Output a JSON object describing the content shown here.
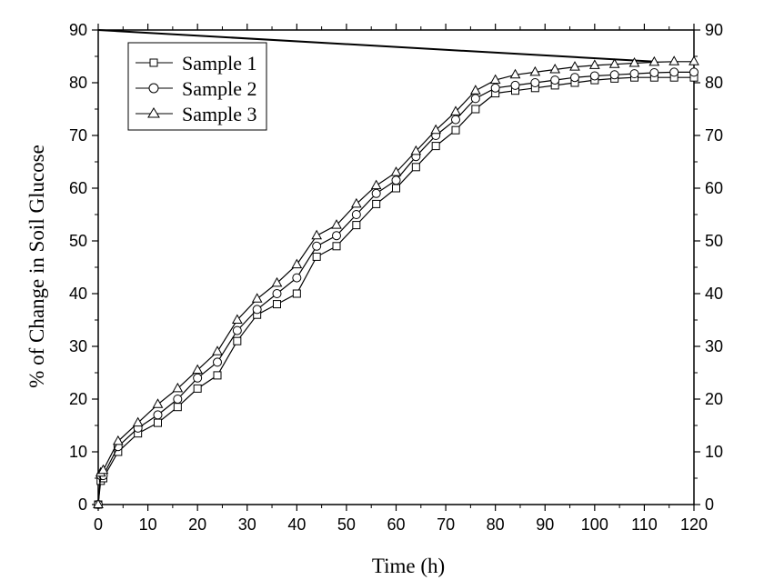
{
  "chart_data": {
    "type": "line",
    "title": "",
    "xlabel": "Time (h)",
    "ylabel": "% of Change in Soil Glucose",
    "xlim": [
      0,
      120
    ],
    "ylim": [
      0,
      90
    ],
    "x_ticks": [
      0,
      10,
      20,
      30,
      40,
      50,
      60,
      70,
      80,
      90,
      100,
      110,
      120
    ],
    "y_ticks": [
      0,
      10,
      20,
      30,
      40,
      50,
      60,
      70,
      80,
      90
    ],
    "x_tick_labels": [
      "0",
      "10",
      "20",
      "30",
      "40",
      "50",
      "60",
      "70",
      "80",
      "90",
      "100",
      "110",
      "120"
    ],
    "y_tick_labels": [
      "0",
      "10",
      "20",
      "30",
      "40",
      "50",
      "60",
      "70",
      "80",
      "90"
    ],
    "right_y_axis": true,
    "grid": false,
    "legend_position": "top-left",
    "x": [
      0,
      0.5,
      1,
      4,
      8,
      12,
      16,
      20,
      24,
      28,
      32,
      36,
      40,
      44,
      48,
      52,
      56,
      60,
      64,
      68,
      72,
      76,
      80,
      84,
      88,
      92,
      96,
      100,
      104,
      108,
      112,
      116,
      120
    ],
    "series": [
      {
        "name": "Sample 1",
        "marker": "square",
        "values": [
          0,
          4.5,
          5,
          10,
          13.5,
          15.5,
          18.5,
          22,
          24.5,
          31,
          36,
          38,
          40,
          47,
          49,
          53,
          57,
          60,
          64,
          68,
          71,
          75,
          78,
          78.5,
          79,
          79.5,
          80,
          80.5,
          80.8,
          81,
          81,
          81,
          81
        ]
      },
      {
        "name": "Sample 2",
        "marker": "circle",
        "values": [
          0,
          5.5,
          5.5,
          11,
          14.5,
          17,
          20,
          24,
          27,
          33,
          37,
          40,
          43,
          49,
          51,
          55,
          59,
          61.5,
          66,
          70,
          73,
          77,
          79,
          79.5,
          80,
          80.5,
          81,
          81.3,
          81.5,
          81.7,
          81.9,
          82,
          82
        ]
      },
      {
        "name": "Sample 3",
        "marker": "triangle",
        "values": [
          0,
          6,
          6.5,
          12,
          15.5,
          19,
          22,
          25.5,
          29,
          35,
          39,
          42,
          45.5,
          51,
          53,
          57,
          60.5,
          63,
          67,
          71,
          74.5,
          78.5,
          80.5,
          81.5,
          82,
          82.5,
          83,
          83.3,
          83.5,
          83.7,
          83.9,
          84,
          84
        ]
      }
    ],
    "annotation_line": {
      "x": [
        0,
        112
      ],
      "y": [
        90,
        84
      ]
    }
  }
}
